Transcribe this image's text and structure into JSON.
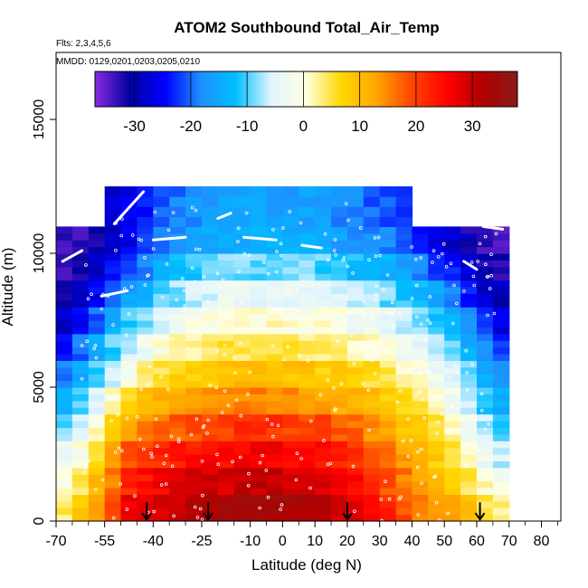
{
  "chart_data": {
    "type": "heatmap",
    "title": "ATOM2 Southbound Total_Air_Temp",
    "subtitle_flights": "Flts: 2,3,4,5,6",
    "subtitle_dates": "MMDD: 0129,0201,0203,0205,0210",
    "xlabel": "Latitude (deg N)",
    "ylabel": "Altitude (m)",
    "xlim": [
      -70,
      86
    ],
    "ylim": [
      0,
      17500
    ],
    "x_ticks": [
      -70,
      -55,
      -40,
      -25,
      -10,
      0,
      10,
      20,
      30,
      40,
      50,
      60,
      70,
      80
    ],
    "x_tick_labels": [
      "-70",
      "-55",
      "-40",
      "-25",
      "-10",
      "0",
      "10",
      "20",
      "30",
      "40",
      "50",
      "60",
      "70",
      "80"
    ],
    "y_ticks": [
      0,
      5000,
      10000,
      15000
    ],
    "y_tick_labels": [
      "0",
      "5000",
      "10000",
      "15000"
    ],
    "colorbar": {
      "range": [
        -37,
        38
      ],
      "ticks": [
        -30,
        -20,
        -10,
        0,
        10,
        20,
        30
      ],
      "tick_labels": [
        "-30",
        "-20",
        "-10",
        "0",
        "10",
        "20",
        "30"
      ],
      "colors": [
        "#8a2be2",
        "#0000a0",
        "#0000ff",
        "#1e90ff",
        "#00bfff",
        "#e0f4ff",
        "#ffffe0",
        "#ffd700",
        "#ffa500",
        "#ff4500",
        "#ff0000",
        "#b00000",
        "#8b1a1a"
      ]
    },
    "temperature_field": {
      "latitude_bins": [
        -70,
        -65,
        -60,
        -55,
        -50,
        -45,
        -40,
        -35,
        -30,
        -25,
        -20,
        -15,
        -10,
        -5,
        0,
        5,
        10,
        15,
        20,
        25,
        30,
        35,
        40,
        45,
        50,
        55,
        60,
        65,
        70
      ],
      "altitude_layers_m": [
        {
          "z0": 0,
          "z1": 1000,
          "t": [
            4,
            8,
            14,
            20,
            26,
            28,
            29,
            30,
            31,
            32,
            33,
            33,
            33,
            33,
            33,
            32,
            31,
            30,
            28,
            26,
            22,
            19,
            16,
            14,
            12,
            9,
            5,
            3,
            2
          ]
        },
        {
          "z0": 1000,
          "z1": 2000,
          "t": [
            0,
            4,
            10,
            16,
            22,
            24,
            26,
            27,
            28,
            29,
            29,
            30,
            30,
            30,
            29,
            29,
            28,
            27,
            25,
            22,
            19,
            16,
            13,
            11,
            8,
            5,
            1,
            -2,
            -4
          ]
        },
        {
          "z0": 2000,
          "z1": 3000,
          "t": [
            -4,
            0,
            6,
            12,
            18,
            20,
            22,
            23,
            24,
            25,
            25,
            26,
            26,
            26,
            25,
            25,
            24,
            23,
            21,
            18,
            16,
            13,
            10,
            8,
            5,
            2,
            -3,
            -6,
            -7
          ]
        },
        {
          "z0": 3000,
          "z1": 4000,
          "t": [
            -9,
            -5,
            1,
            7,
            12,
            15,
            17,
            18,
            19,
            20,
            20,
            21,
            21,
            21,
            20,
            20,
            19,
            18,
            17,
            15,
            13,
            10,
            8,
            5,
            2,
            -2,
            -7,
            -10,
            -11
          ]
        },
        {
          "z0": 4000,
          "z1": 5000,
          "t": [
            -14,
            -10,
            -5,
            1,
            6,
            9,
            11,
            12,
            13,
            14,
            14,
            15,
            15,
            15,
            14,
            14,
            13,
            12,
            11,
            10,
            8,
            6,
            4,
            1,
            -2,
            -6,
            -11,
            -14,
            -15
          ]
        },
        {
          "z0": 5000,
          "z1": 6000,
          "t": [
            -19,
            -15,
            -10,
            -5,
            0,
            3,
            5,
            7,
            8,
            9,
            9,
            10,
            10,
            10,
            9,
            9,
            8,
            8,
            7,
            6,
            4,
            2,
            0,
            -3,
            -6,
            -10,
            -15,
            -18,
            -19
          ]
        },
        {
          "z0": 6000,
          "z1": 7000,
          "t": [
            -24,
            -20,
            -15,
            -10,
            -6,
            -3,
            0,
            2,
            3,
            4,
            5,
            5,
            5,
            5,
            5,
            4,
            4,
            3,
            2,
            1,
            0,
            -2,
            -4,
            -7,
            -10,
            -14,
            -19,
            -22,
            -23
          ]
        },
        {
          "z0": 7000,
          "z1": 8000,
          "t": [
            -28,
            -25,
            -20,
            -15,
            -11,
            -8,
            -5,
            -3,
            -1,
            0,
            1,
            1,
            1,
            1,
            1,
            0,
            0,
            -1,
            -2,
            -3,
            -4,
            -6,
            -8,
            -11,
            -14,
            -18,
            -23,
            -26,
            -27
          ]
        },
        {
          "z0": 8000,
          "z1": 9000,
          "t": [
            -31,
            -29,
            -25,
            -20,
            -16,
            -13,
            -10,
            -8,
            -6,
            -5,
            -4,
            -4,
            -4,
            -4,
            -4,
            -4,
            -5,
            -6,
            -7,
            -8,
            -9,
            -11,
            -13,
            -16,
            -19,
            -23,
            -27,
            -29,
            -30
          ]
        },
        {
          "z0": 9000,
          "z1": 10000,
          "t": [
            -33,
            -32,
            -29,
            -25,
            -21,
            -18,
            -15,
            -13,
            -11,
            -10,
            -9,
            -9,
            -9,
            -9,
            -9,
            -9,
            -10,
            -11,
            -12,
            -13,
            -14,
            -16,
            -18,
            -21,
            -24,
            -27,
            -31,
            -32,
            -33
          ]
        },
        {
          "z0": 10000,
          "z1": 11000,
          "t": [
            -34,
            -33,
            -31,
            -29,
            -26,
            -23,
            -20,
            -18,
            -16,
            -15,
            -14,
            -14,
            -14,
            -14,
            -14,
            -14,
            -15,
            -16,
            -17,
            -18,
            -19,
            -21,
            -23,
            -26,
            -28,
            -31,
            -33,
            -34,
            -34
          ]
        },
        {
          "z0": 11000,
          "z1": 12500,
          "t": [
            null,
            null,
            null,
            -27,
            -25,
            -23,
            -21,
            -19,
            -18,
            -17,
            -16,
            -16,
            -16,
            -16,
            -16,
            -16,
            -17,
            -18,
            -19,
            -20,
            -21,
            -22,
            null,
            null,
            null,
            null,
            null,
            null,
            null
          ]
        }
      ]
    },
    "flight_arrows_latitude": [
      -42,
      -23,
      20,
      61
    ]
  }
}
